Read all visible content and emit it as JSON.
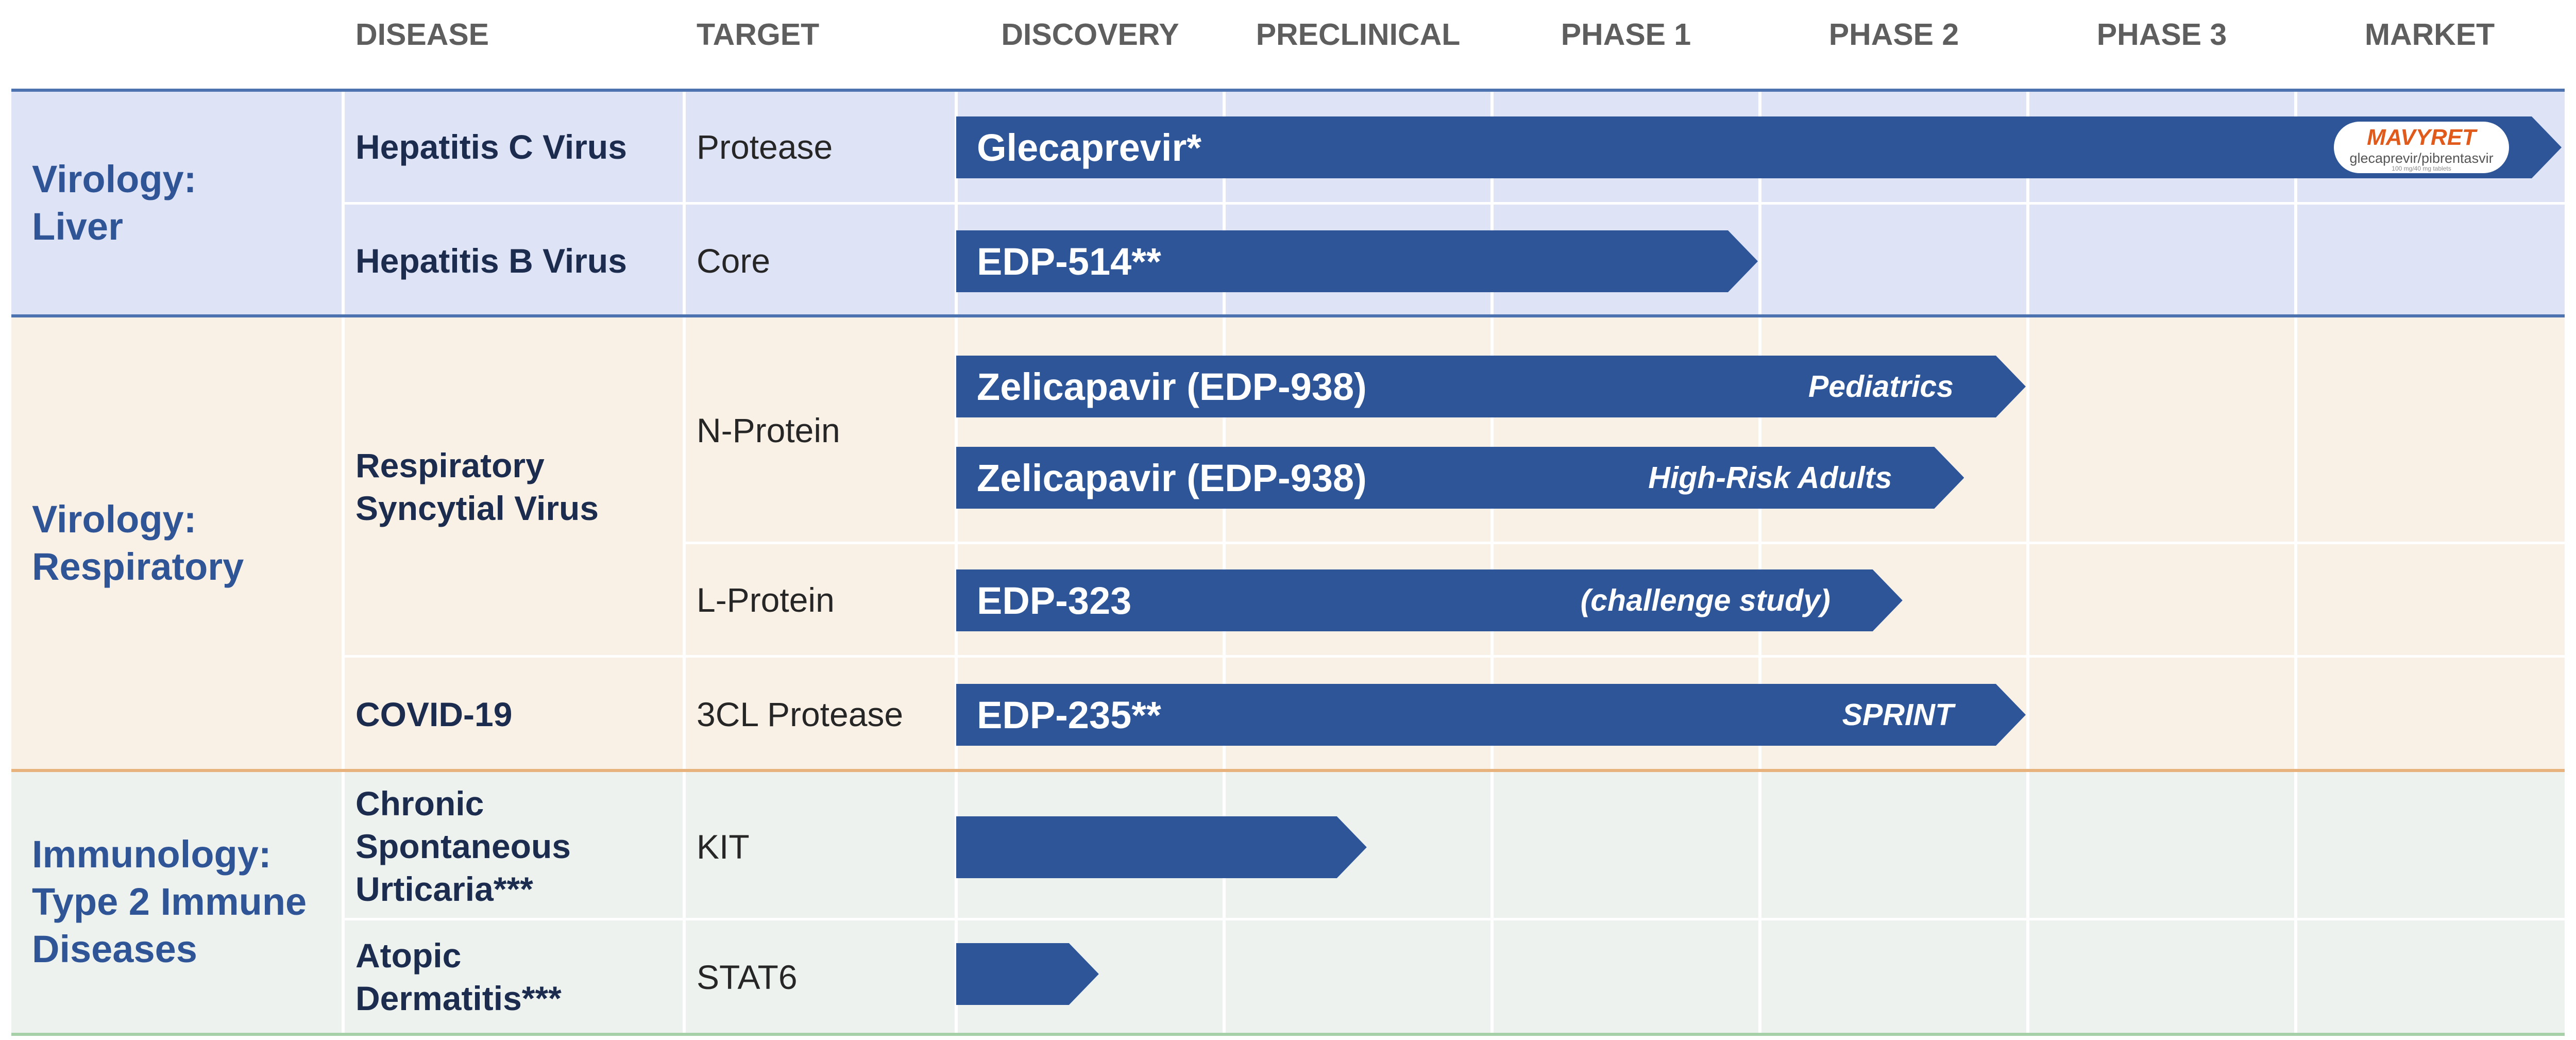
{
  "header": {
    "disease": "DISEASE",
    "target": "TARGET",
    "stages": [
      "DISCOVERY",
      "PRECLINICAL",
      "PHASE 1",
      "PHASE 2",
      "PHASE 3",
      "MARKET"
    ]
  },
  "colors": {
    "liver_band": "#dfe3f6",
    "respiratory_band": "#faf1e6",
    "immunology_band": "#edf2ee",
    "liver_rule": "#4c72b0",
    "respiratory_rule": "#e8b27c",
    "immunology_rule": "#a6d1a8",
    "arrow": "#2d5597",
    "category_text": "#2f5597"
  },
  "groups": {
    "liver": {
      "category": [
        "Virology:",
        "Liver"
      ],
      "rows": [
        {
          "disease": [
            "Hepatitis C Virus"
          ],
          "target": "Protease",
          "program": "Glecaprevir*",
          "note": "",
          "stage_reached": 6,
          "logo": {
            "brand": "MAVYRET",
            "subtitle": "glecaprevir/pibrentasvir",
            "fineprint": "100 mg/40 mg tablets",
            "icon": "mavyret-logo-icon"
          }
        },
        {
          "disease": [
            "Hepatitis B Virus"
          ],
          "target": "Core",
          "program": "EDP-514**",
          "note": "",
          "stage_reached": 3
        }
      ]
    },
    "respiratory": {
      "category": [
        "Virology:",
        "Respiratory"
      ],
      "disease_rsv": [
        "Respiratory",
        "Syncytial Virus"
      ],
      "target_n": "N-Protein",
      "target_l": "L-Protein",
      "rows": [
        {
          "program": "Zelicapavir (EDP-938)",
          "note": "Pediatrics",
          "stage_reached": 4
        },
        {
          "program": "Zelicapavir (EDP-938)",
          "note": "High-Risk Adults",
          "stage_reached": 3.77
        },
        {
          "program": "EDP-323",
          "note": "(challenge study)",
          "stage_reached": 3.54
        }
      ],
      "covid": {
        "disease": [
          "COVID-19"
        ],
        "target": "3CL Protease",
        "program": "EDP-235**",
        "note": "SPRINT",
        "stage_reached": 4
      }
    },
    "immunology": {
      "category": [
        "Immunology:",
        "Type 2 Immune",
        "Diseases"
      ],
      "rows": [
        {
          "disease": [
            "Chronic",
            "Spontaneous",
            "Urticaria***"
          ],
          "target": "KIT",
          "program": "",
          "note": "",
          "stage_reached": 1.54
        },
        {
          "disease": [
            "Atopic",
            "Dermatitis***"
          ],
          "target": "STAT6",
          "program": "",
          "note": "",
          "stage_reached": 0.54
        }
      ]
    }
  }
}
